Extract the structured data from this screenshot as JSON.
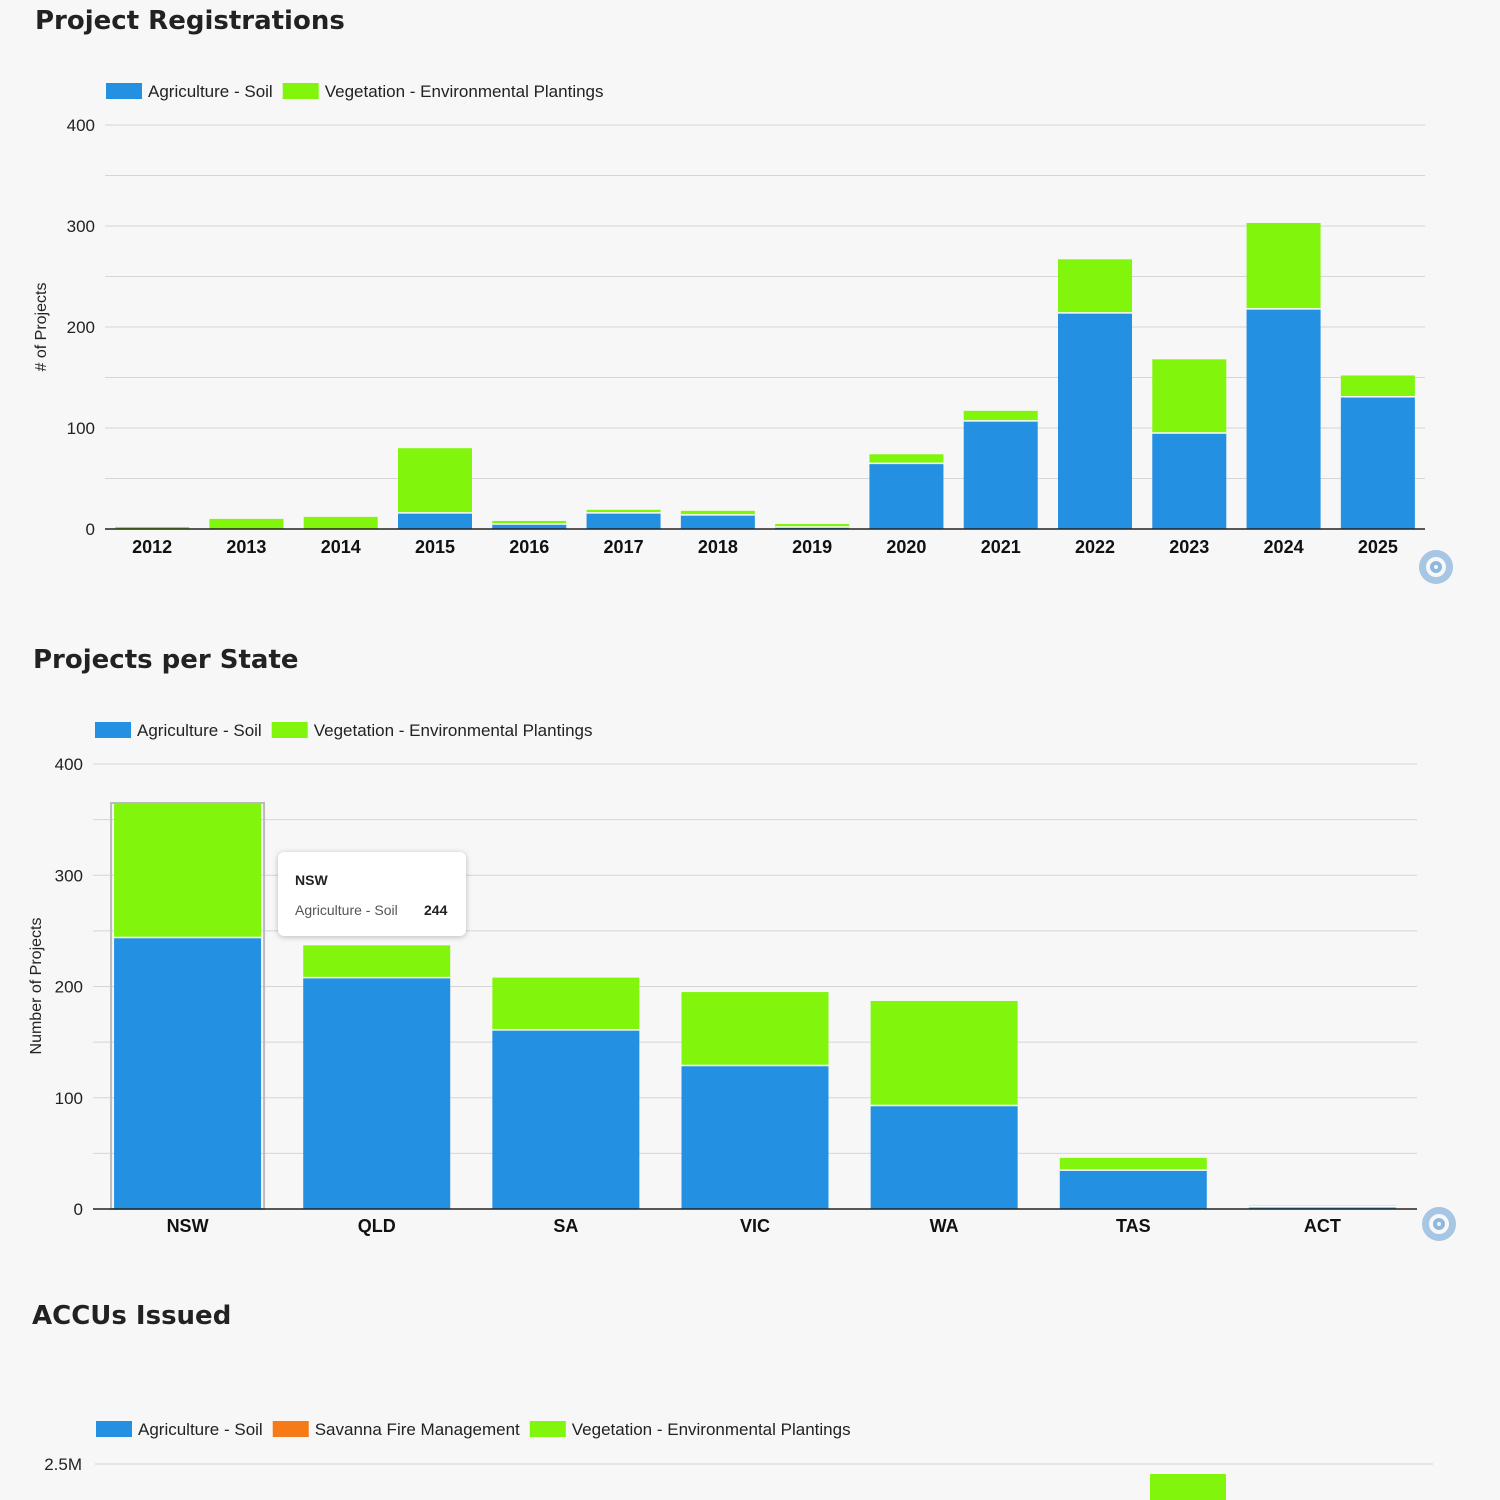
{
  "sections": {
    "registrations": {
      "title": "Project Registrations"
    },
    "states": {
      "title": "Projects per State"
    },
    "accus": {
      "title": "ACCUs Issued"
    }
  },
  "tooltip": {
    "title": "NSW",
    "series": "Agriculture - Soil",
    "value": "244"
  },
  "chart_data": [
    {
      "type": "bar",
      "stacked": true,
      "title": "Project Registrations",
      "xlabel": "",
      "ylabel": "# of Projects",
      "ylim": [
        0,
        400
      ],
      "yticks": [
        "0",
        "100",
        "200",
        "300",
        "400"
      ],
      "categories": [
        "2012",
        "2013",
        "2014",
        "2015",
        "2016",
        "2017",
        "2018",
        "2019",
        "2020",
        "2021",
        "2022",
        "2023",
        "2024",
        "2025"
      ],
      "series": [
        {
          "name": "Agriculture - Soil",
          "color": "#2390e2",
          "values": [
            0,
            0,
            0,
            16,
            5,
            16,
            14,
            2,
            65,
            107,
            214,
            95,
            218,
            131
          ]
        },
        {
          "name": "Vegetation - Environmental Plantings",
          "color": "#82f50d",
          "values": [
            2,
            10,
            12,
            64,
            3,
            3,
            4,
            3,
            9,
            10,
            53,
            73,
            85,
            21
          ]
        }
      ],
      "legend": "top-left"
    },
    {
      "type": "bar",
      "stacked": true,
      "title": "Projects per State",
      "xlabel": "",
      "ylabel": "Number of Projects",
      "ylim": [
        0,
        400
      ],
      "yticks": [
        "0",
        "100",
        "200",
        "300",
        "400"
      ],
      "categories": [
        "NSW",
        "QLD",
        "SA",
        "VIC",
        "WA",
        "TAS",
        "ACT"
      ],
      "series": [
        {
          "name": "Agriculture - Soil",
          "color": "#2390e2",
          "values": [
            244,
            208,
            161,
            129,
            93,
            35,
            2
          ]
        },
        {
          "name": "Vegetation - Environmental Plantings",
          "color": "#82f50d",
          "values": [
            121,
            29,
            47,
            66,
            94,
            11,
            1
          ]
        }
      ],
      "legend": "top-left"
    },
    {
      "type": "bar",
      "stacked": true,
      "title": "ACCUs Issued",
      "xlabel": "",
      "ylabel": "",
      "yticks": [
        "2.5M"
      ],
      "categories": [],
      "series": [
        {
          "name": "Agriculture - Soil",
          "color": "#2390e2",
          "values": []
        },
        {
          "name": "Savanna Fire Management",
          "color": "#f67a16",
          "values": []
        },
        {
          "name": "Vegetation - Environmental Plantings",
          "color": "#82f50d",
          "values": []
        }
      ],
      "legend": "top-left"
    }
  ]
}
